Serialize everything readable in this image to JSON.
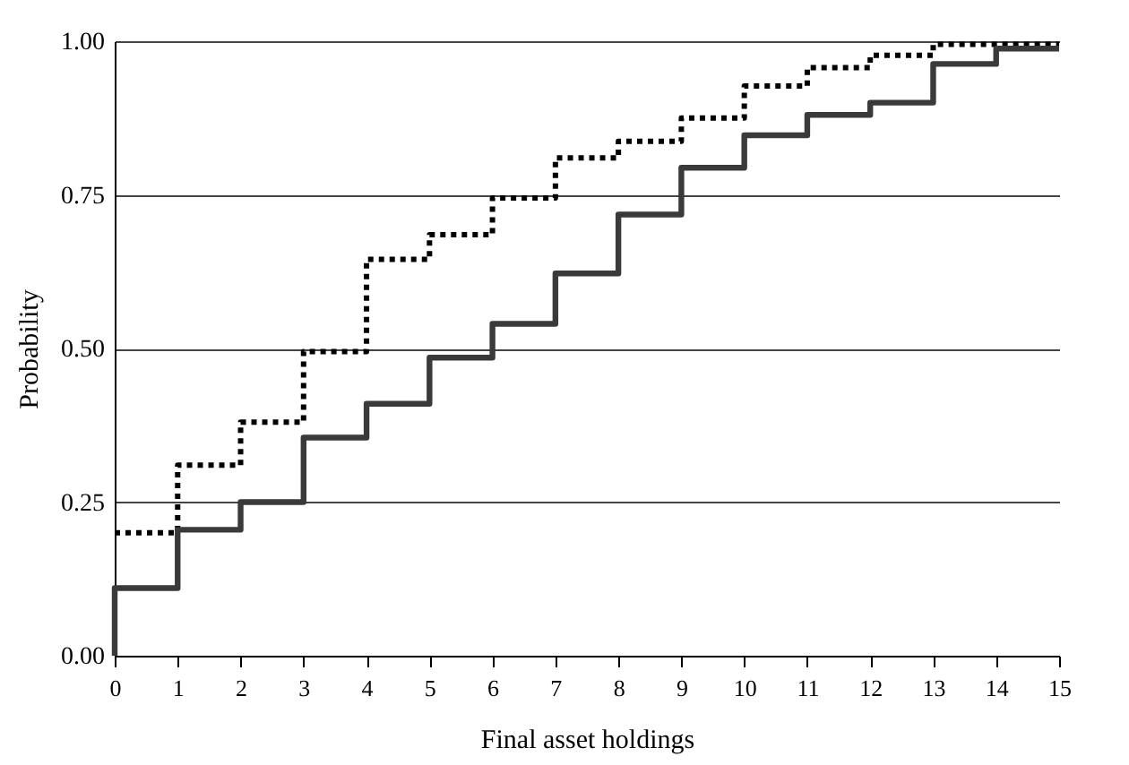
{
  "chart_data": {
    "type": "step",
    "xlabel": "Final asset holdings",
    "ylabel": "Probability",
    "xlim": [
      0,
      15
    ],
    "xticks": [
      0,
      1,
      2,
      3,
      4,
      5,
      6,
      7,
      8,
      9,
      10,
      11,
      12,
      13,
      14,
      15
    ],
    "ylim": [
      0,
      1
    ],
    "yticks": [
      {
        "value": 0,
        "label": "0.00"
      },
      {
        "value": 0.25,
        "label": "0.25"
      },
      {
        "value": 0.5,
        "label": "0.50"
      },
      {
        "value": 0.75,
        "label": "0.75"
      },
      {
        "value": 1,
        "label": "1.00"
      }
    ],
    "grid": "y",
    "series": [
      {
        "color": "#000000",
        "line_style": "dotted",
        "x": [
          0,
          1,
          2,
          3,
          4,
          5,
          6,
          7,
          8,
          9,
          10,
          11,
          12,
          13,
          14,
          15
        ],
        "values": [
          0.2,
          0.31,
          0.38,
          0.495,
          0.645,
          0.685,
          0.745,
          0.81,
          0.837,
          0.875,
          0.927,
          0.957,
          0.977,
          0.995,
          0.995,
          0.995
        ]
      },
      {
        "color": "#3a3a3a",
        "line_style": "solid",
        "x": [
          0,
          0,
          1,
          2,
          3,
          4,
          5,
          6,
          7,
          8,
          9,
          10,
          11,
          12,
          13,
          14,
          15
        ],
        "values": [
          0,
          0.11,
          0.205,
          0.25,
          0.355,
          0.41,
          0.485,
          0.54,
          0.622,
          0.718,
          0.794,
          0.847,
          0.88,
          0.9,
          0.963,
          0.988,
          0.988
        ]
      }
    ]
  }
}
